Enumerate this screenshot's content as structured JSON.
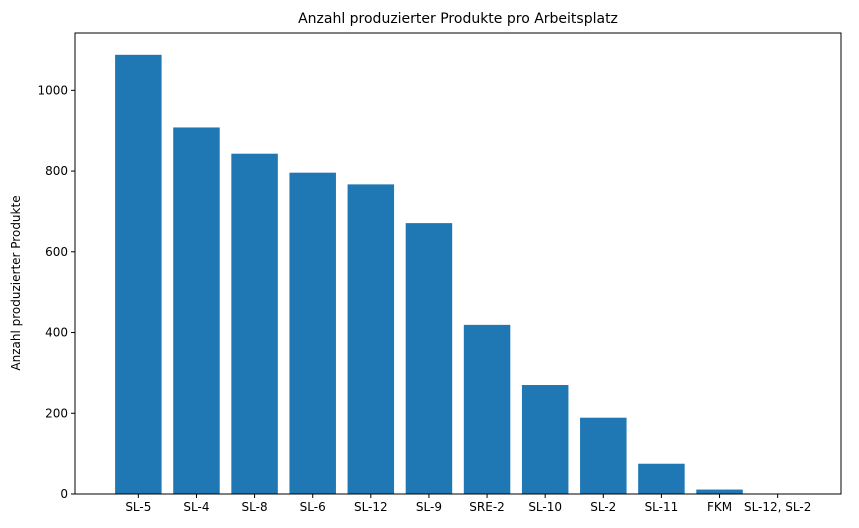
{
  "chart_data": {
    "type": "bar",
    "title": "Anzahl produzierter Produkte pro Arbeitsplatz",
    "xlabel": "",
    "ylabel": "Anzahl produzierter Produkte",
    "categories": [
      "SL-5",
      "SL-4",
      "SL-8",
      "SL-6",
      "SL-12",
      "SL-9",
      "SRE-2",
      "SL-10",
      "SL-2",
      "SL-11",
      "FKM",
      "SL-12, SL-2"
    ],
    "values": [
      1088,
      908,
      843,
      796,
      767,
      671,
      419,
      270,
      189,
      75,
      11,
      1
    ],
    "ylim": [
      0,
      1142
    ],
    "yticks": [
      0,
      200,
      400,
      600,
      800,
      1000
    ],
    "grid": false,
    "bar_color": "#1f77b4"
  }
}
